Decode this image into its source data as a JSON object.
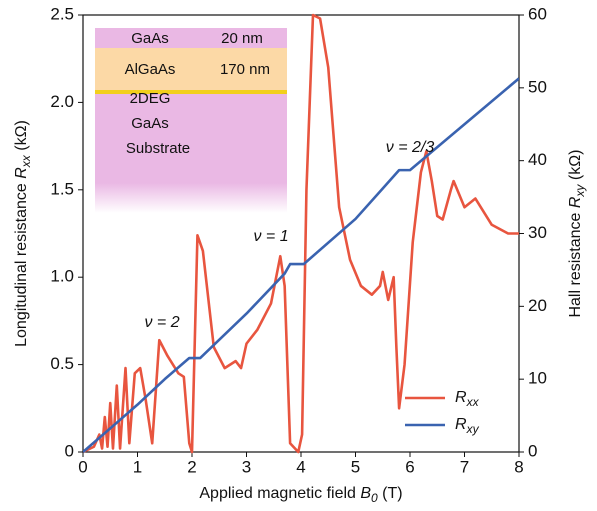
{
  "chart_data": {
    "type": "line",
    "xlabel": {
      "text": "Applied magnetic field",
      "symbol": "B",
      "subscript": "0",
      "unit": "(T)"
    },
    "ylabel": {
      "text": "Longitudinal resistance",
      "symbol": "R",
      "subscript": "xx",
      "unit": "(kΩ)"
    },
    "y2label": {
      "text": "Hall resistance",
      "symbol": "R",
      "subscript": "xy",
      "unit": "(kΩ)"
    },
    "xlim": [
      0,
      8
    ],
    "xticks": [
      0,
      1,
      2,
      3,
      4,
      5,
      6,
      7,
      8
    ],
    "ylim": [
      0,
      2.5
    ],
    "yticks": [
      0,
      0.5,
      {
        "value": 1,
        "label": "1.0"
      },
      1.5,
      {
        "value": 2,
        "label": "2.0"
      },
      2.5
    ],
    "y2lim": [
      0,
      60
    ],
    "y2ticks": [
      0,
      10,
      20,
      30,
      40,
      50,
      60
    ],
    "legend": "lower right",
    "series": [
      {
        "name": "R",
        "subscript": "xx",
        "color": "#e8553f",
        "x": [
          0,
          0.2,
          0.3,
          0.35,
          0.4,
          0.45,
          0.5,
          0.55,
          0.62,
          0.68,
          0.78,
          0.85,
          0.95,
          1.05,
          1.15,
          1.27,
          1.4,
          1.55,
          1.75,
          1.85,
          1.95,
          2.0,
          2.1,
          2.2,
          2.4,
          2.6,
          2.8,
          2.9,
          3.0,
          3.2,
          3.45,
          3.62,
          3.7,
          3.8,
          3.95,
          4.02,
          4.1,
          4.22,
          4.35,
          4.5,
          4.7,
          4.9,
          5.1,
          5.3,
          5.45,
          5.5,
          5.6,
          5.7,
          5.75,
          5.8,
          5.9,
          6.05,
          6.2,
          6.3,
          6.4,
          6.5,
          6.6,
          6.75,
          6.8,
          7.0,
          7.2,
          7.5,
          7.8,
          8.0
        ],
        "values": [
          0,
          0.03,
          0.1,
          0.02,
          0.2,
          0.03,
          0.28,
          0.02,
          0.38,
          0.02,
          0.48,
          0.05,
          0.45,
          0.48,
          0.3,
          0.05,
          0.64,
          0.55,
          0.45,
          0.43,
          0.05,
          0,
          1.24,
          1.15,
          0.6,
          0.48,
          0.52,
          0.48,
          0.62,
          0.7,
          0.85,
          1.12,
          0.95,
          0.05,
          0,
          0.1,
          1.5,
          2.5,
          2.48,
          2.2,
          1.4,
          1.1,
          0.95,
          0.9,
          0.95,
          1.03,
          0.87,
          1.0,
          0.6,
          0.25,
          0.5,
          1.2,
          1.6,
          1.72,
          1.55,
          1.35,
          1.33,
          1.5,
          1.55,
          1.4,
          1.45,
          1.3,
          1.25,
          1.25
        ]
      },
      {
        "name": "R",
        "subscript": "xy",
        "color": "#3a63b0",
        "axis": "y2",
        "x": [
          0,
          1,
          1.5,
          1.95,
          2.15,
          3,
          3.7,
          3.8,
          4.05,
          5,
          5.8,
          6.0,
          7,
          8
        ],
        "values": [
          0,
          6.5,
          10,
          12.9,
          12.9,
          19,
          24.5,
          25.8,
          25.8,
          32,
          38.7,
          38.7,
          45,
          51.3
        ]
      }
    ],
    "annotations": [
      "ν = 2",
      "ν = 1",
      "ν = 2/3"
    ],
    "inset": {
      "layers": [
        "GaAs",
        "20 nm",
        "AlGaAs",
        "170 nm",
        "2DEG",
        "GaAs",
        "Substrate"
      ]
    }
  }
}
